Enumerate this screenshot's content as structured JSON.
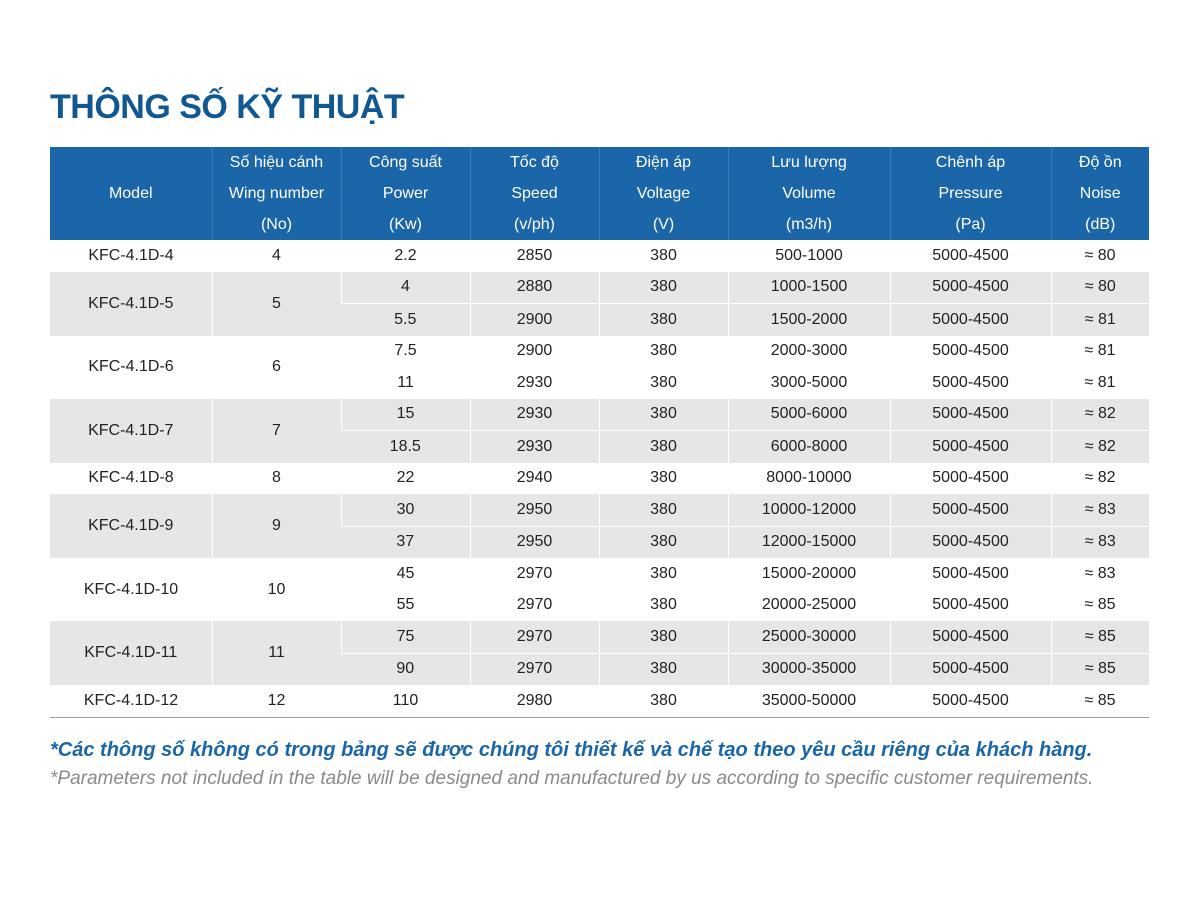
{
  "title": "THÔNG SỐ KỸ THUẬT",
  "table": {
    "headers": {
      "model": "Model",
      "wing": [
        "Số hiệu cánh",
        "Wing number",
        "(No)"
      ],
      "power": [
        "Công suất",
        "Power",
        "(Kw)"
      ],
      "speed": [
        "Tốc độ",
        "Speed",
        "(v/ph)"
      ],
      "voltage": [
        "Điện áp",
        "Voltage",
        "(V)"
      ],
      "volume": [
        "Lưu lượng",
        "Volume",
        "(m3/h)"
      ],
      "pressure": [
        "Chênh áp",
        "Pressure",
        "(Pa)"
      ],
      "noise": [
        "Độ ồn",
        "Noise",
        "(dB)"
      ]
    },
    "rows": [
      {
        "model": "KFC-4.1D-4",
        "wing": "4",
        "power": "2.2",
        "speed": "2850",
        "voltage": "380",
        "volume": "500-1000",
        "pressure": "5000-4500",
        "noise": "≈ 80"
      },
      {
        "model": "KFC-4.1D-5",
        "wing": "5",
        "power": "4",
        "speed": "2880",
        "voltage": "380",
        "volume": "1000-1500",
        "pressure": "5000-4500",
        "noise": "≈ 80"
      },
      {
        "power": "5.5",
        "speed": "2900",
        "voltage": "380",
        "volume": "1500-2000",
        "pressure": "5000-4500",
        "noise": "≈ 81"
      },
      {
        "model": "KFC-4.1D-6",
        "wing": "6",
        "power": "7.5",
        "speed": "2900",
        "voltage": "380",
        "volume": "2000-3000",
        "pressure": "5000-4500",
        "noise": "≈ 81"
      },
      {
        "power": "11",
        "speed": "2930",
        "voltage": "380",
        "volume": "3000-5000",
        "pressure": "5000-4500",
        "noise": "≈ 81"
      },
      {
        "model": "KFC-4.1D-7",
        "wing": "7",
        "power": "15",
        "speed": "2930",
        "voltage": "380",
        "volume": "5000-6000",
        "pressure": "5000-4500",
        "noise": "≈ 82"
      },
      {
        "power": "18.5",
        "speed": "2930",
        "voltage": "380",
        "volume": "6000-8000",
        "pressure": "5000-4500",
        "noise": "≈ 82"
      },
      {
        "model": "KFC-4.1D-8",
        "wing": "8",
        "power": "22",
        "speed": "2940",
        "voltage": "380",
        "volume": "8000-10000",
        "pressure": "5000-4500",
        "noise": "≈ 82"
      },
      {
        "model": "KFC-4.1D-9",
        "wing": "9",
        "power": "30",
        "speed": "2950",
        "voltage": "380",
        "volume": "10000-12000",
        "pressure": "5000-4500",
        "noise": "≈ 83"
      },
      {
        "power": "37",
        "speed": "2950",
        "voltage": "380",
        "volume": "12000-15000",
        "pressure": "5000-4500",
        "noise": "≈ 83"
      },
      {
        "model": "KFC-4.1D-10",
        "wing": "10",
        "power": "45",
        "speed": "2970",
        "voltage": "380",
        "volume": "15000-20000",
        "pressure": "5000-4500",
        "noise": "≈ 83"
      },
      {
        "power": "55",
        "speed": "2970",
        "voltage": "380",
        "volume": "20000-25000",
        "pressure": "5000-4500",
        "noise": "≈ 85"
      },
      {
        "model": "KFC-4.1D-11",
        "wing": "11",
        "power": "75",
        "speed": "2970",
        "voltage": "380",
        "volume": "25000-30000",
        "pressure": "5000-4500",
        "noise": "≈ 85"
      },
      {
        "power": "90",
        "speed": "2970",
        "voltage": "380",
        "volume": "30000-35000",
        "pressure": "5000-4500",
        "noise": "≈ 85"
      },
      {
        "model": "KFC-4.1D-12",
        "wing": "12",
        "power": "110",
        "speed": "2980",
        "voltage": "380",
        "volume": "35000-50000",
        "pressure": "5000-4500",
        "noise": "≈ 85"
      }
    ]
  },
  "notes": {
    "vi": "*Các thông số không có trong bảng sẽ được chúng tôi thiết kế và chế tạo theo yêu cầu riêng của khách hàng.",
    "en": "*Parameters not included in the table will be designed and manufactured by us according to specific customer requirements."
  },
  "colors": {
    "brand_blue": "#115893",
    "header_bg": "#1b66a9",
    "row_shade": "#e6e6e6",
    "note_gray": "#8a8a8a"
  }
}
